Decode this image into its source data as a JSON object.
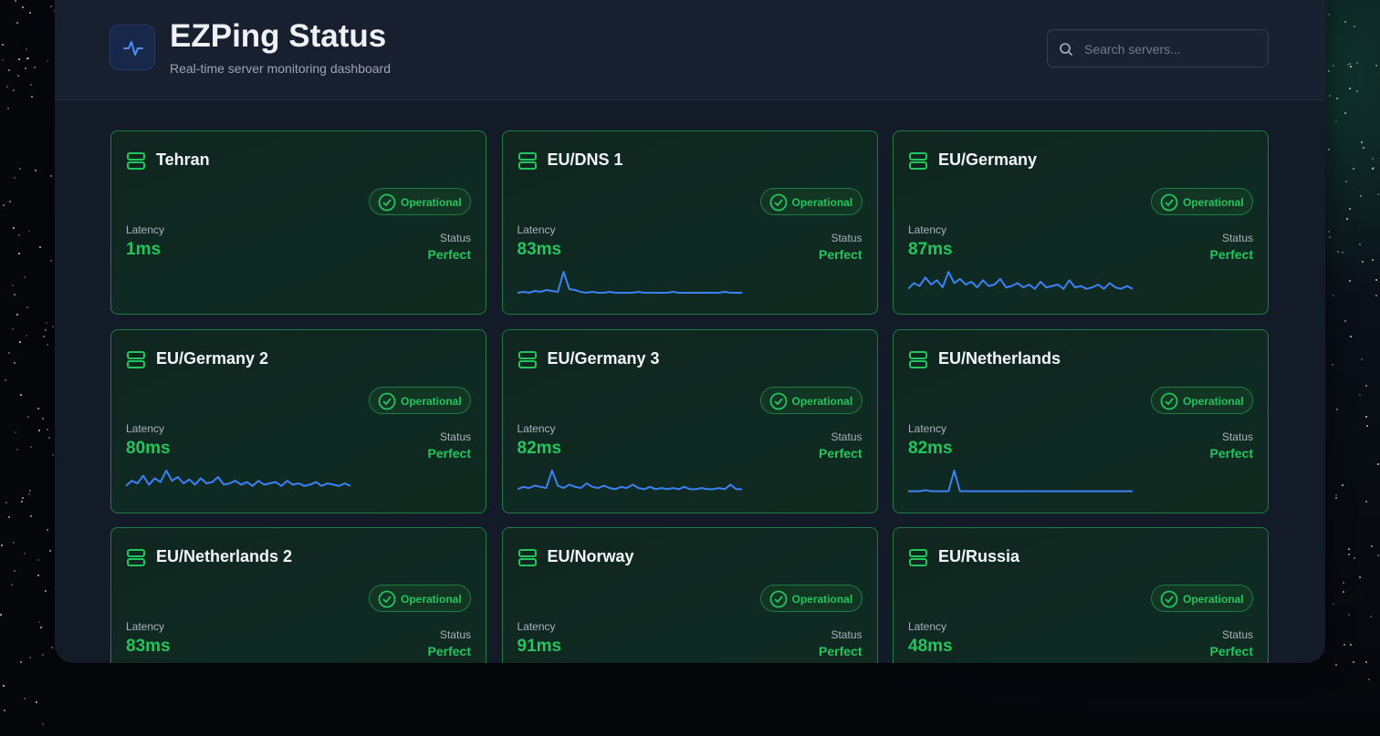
{
  "header": {
    "title": "EZPing Status",
    "subtitle": "Real-time server monitoring dashboard"
  },
  "search": {
    "placeholder": "Search servers..."
  },
  "servers": [
    {
      "name": "Tehran",
      "badge": "Operational",
      "latency_label": "Latency",
      "latency": "1ms",
      "status_label": "Status",
      "status": "Perfect"
    },
    {
      "name": "EU/DNS 1",
      "badge": "Operational",
      "latency_label": "Latency",
      "latency": "83ms",
      "status_label": "Status",
      "status": "Perfect",
      "latency_history": [
        5,
        6,
        5,
        7,
        6,
        8,
        7,
        6,
        28,
        9,
        8,
        6,
        5,
        6,
        5,
        5,
        6,
        5,
        5,
        5,
        5,
        6,
        5,
        5,
        5,
        5,
        5,
        6,
        5,
        5,
        5,
        5,
        5,
        5,
        5,
        5,
        6,
        5,
        5,
        5
      ]
    },
    {
      "name": "EU/Germany",
      "badge": "Operational",
      "latency_label": "Latency",
      "latency": "87ms",
      "status_label": "Status",
      "status": "Perfect",
      "latency_history": [
        6,
        10,
        8,
        14,
        9,
        12,
        7,
        18,
        10,
        13,
        9,
        11,
        7,
        12,
        8,
        9,
        13,
        7,
        8,
        10,
        7,
        9,
        6,
        11,
        7,
        8,
        9,
        6,
        12,
        7,
        8,
        6,
        7,
        9,
        6,
        10,
        7,
        6,
        8,
        6
      ]
    },
    {
      "name": "EU/Germany 2",
      "badge": "Operational",
      "latency_label": "Latency",
      "latency": "80ms",
      "status_label": "Status",
      "status": "Perfect",
      "latency_history": [
        8,
        12,
        10,
        16,
        9,
        14,
        11,
        20,
        12,
        15,
        10,
        13,
        9,
        14,
        10,
        11,
        15,
        9,
        10,
        12,
        9,
        11,
        8,
        12,
        9,
        10,
        11,
        8,
        12,
        9,
        10,
        8,
        9,
        11,
        8,
        10,
        9,
        8,
        10,
        8
      ]
    },
    {
      "name": "EU/Germany 3",
      "badge": "Operational",
      "latency_label": "Latency",
      "latency": "82ms",
      "status_label": "Status",
      "status": "Perfect",
      "latency_history": [
        6,
        8,
        7,
        9,
        8,
        7,
        22,
        9,
        7,
        10,
        8,
        7,
        11,
        8,
        7,
        9,
        7,
        6,
        8,
        7,
        10,
        7,
        6,
        8,
        6,
        7,
        6,
        7,
        6,
        8,
        6,
        6,
        7,
        6,
        6,
        7,
        6,
        10,
        6,
        6
      ]
    },
    {
      "name": "EU/Netherlands",
      "badge": "Operational",
      "latency_label": "Latency",
      "latency": "82ms",
      "status_label": "Status",
      "status": "Perfect",
      "latency_history": [
        5,
        5,
        5,
        6,
        5,
        5,
        5,
        5,
        26,
        5,
        5,
        5,
        5,
        5,
        5,
        5,
        5,
        5,
        5,
        5,
        5,
        5,
        5,
        5,
        5,
        5,
        5,
        5,
        5,
        5,
        5,
        5,
        5,
        5,
        5,
        5,
        5,
        5,
        5,
        5
      ]
    },
    {
      "name": "EU/Netherlands 2",
      "badge": "Operational",
      "latency_label": "Latency",
      "latency": "83ms",
      "status_label": "Status",
      "status": "Perfect"
    },
    {
      "name": "EU/Norway",
      "badge": "Operational",
      "latency_label": "Latency",
      "latency": "91ms",
      "status_label": "Status",
      "status": "Perfect"
    },
    {
      "name": "EU/Russia",
      "badge": "Operational",
      "latency_label": "Latency",
      "latency": "48ms",
      "status_label": "Status",
      "status": "Perfect"
    }
  ]
}
